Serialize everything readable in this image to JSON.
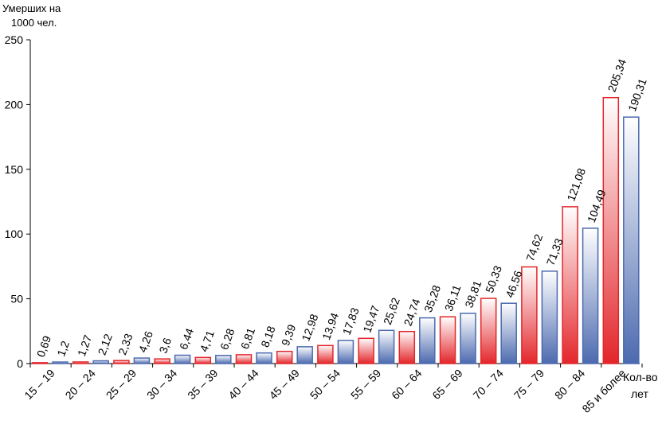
{
  "chart_data": {
    "type": "bar",
    "categories": [
      "15 – 19",
      "20 – 24",
      "25 – 29",
      "30 – 34",
      "35 – 39",
      "40 – 44",
      "45 – 49",
      "50 – 54",
      "55 – 59",
      "60 – 64",
      "65 – 69",
      "70 – 74",
      "75 – 79",
      "80 – 84",
      "85 и более"
    ],
    "series": [
      {
        "values": [
          0.69,
          1.27,
          2.33,
          3.6,
          4.71,
          6.81,
          9.39,
          13.94,
          19.47,
          24.74,
          36.11,
          50.33,
          74.62,
          121.08,
          205.34
        ],
        "labels": [
          "0,69",
          "1,27",
          "2,33",
          "3,6",
          "4,71",
          "6,81",
          "9,39",
          "13,94",
          "19,47",
          "24,74",
          "36,11",
          "50,33",
          "74,62",
          "121,08",
          "205,34"
        ],
        "color": "#e3262b"
      },
      {
        "values": [
          1.2,
          2.12,
          4.26,
          6.44,
          6.28,
          8.18,
          12.98,
          17.83,
          25.62,
          35.28,
          38.81,
          46.56,
          71.33,
          104.49,
          190.31
        ],
        "labels": [
          "1,2",
          "2,12",
          "4,26",
          "6,44",
          "6,28",
          "8,18",
          "12,98",
          "17,83",
          "25,62",
          "35,28",
          "38,81",
          "46,56",
          "71,33",
          "104,49",
          "190,31"
        ],
        "color": "#4c6aaf"
      }
    ],
    "ylabel_lines": [
      "Умерших на",
      "1000 чел."
    ],
    "xlabel_lines": [
      "Кол-во",
      "лет"
    ],
    "ylim": [
      0,
      250
    ],
    "yticks": [
      "0",
      "50",
      "100",
      "150",
      "200",
      "250"
    ],
    "grid": false
  }
}
